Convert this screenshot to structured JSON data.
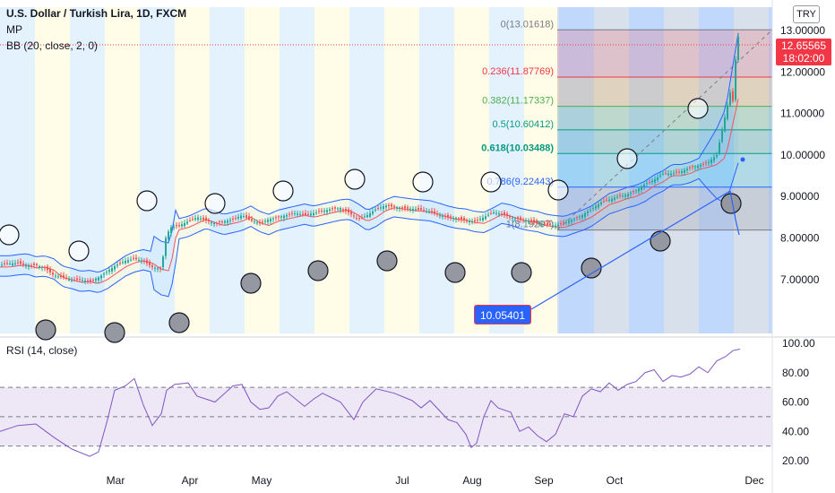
{
  "legend": {
    "title": "U.S. Dollar / Turkish Lira, 1D, FXCM",
    "mp": "MP",
    "bb": "BB (20, close, 2, 0)",
    "rsi": "RSI (14, close)"
  },
  "currency": "TRY",
  "last_price": {
    "value": "12.65565",
    "countdown": "18:02:00"
  },
  "callout": "10.05401",
  "colors": {
    "up": "#26a69a",
    "down": "#ef5350",
    "bb_band": "#2962ff",
    "bb_basis": "#f7525f",
    "rsi_line": "#7e57c2",
    "rsi_bg": "#ede7f6",
    "band_blue": "#e3f2fd",
    "band_yellow": "#fffde7"
  },
  "chart_data": [
    {
      "type": "candlestick",
      "title": "U.S. Dollar / Turkish Lira, 1D, FXCM",
      "xlabel": "",
      "ylabel": "",
      "x_tick_labels": [
        "Mar",
        "Apr",
        "May",
        "Jul",
        "Aug",
        "Sep",
        "Oct",
        "Dec"
      ],
      "y_tick_labels": [
        "13.00000",
        "12.00000",
        "11.00000",
        "10.00000",
        "9.00000",
        "8.00000",
        "7.00000"
      ],
      "ylim": [
        6.2,
        13.3
      ],
      "grid": false,
      "close_path": [
        [
          0,
          7.35
        ],
        [
          10,
          7.38
        ],
        [
          20,
          7.4
        ],
        [
          30,
          7.33
        ],
        [
          40,
          7.35
        ],
        [
          50,
          7.28
        ],
        [
          60,
          7.1
        ],
        [
          70,
          7.05
        ],
        [
          80,
          6.98
        ],
        [
          90,
          7.0
        ],
        [
          100,
          6.95
        ],
        [
          110,
          7.05
        ],
        [
          120,
          7.2
        ],
        [
          130,
          7.35
        ],
        [
          140,
          7.45
        ],
        [
          150,
          7.5
        ],
        [
          160,
          7.45
        ],
        [
          170,
          7.3
        ],
        [
          180,
          7.25
        ],
        [
          185,
          8.0
        ],
        [
          190,
          8.25
        ],
        [
          200,
          8.3
        ],
        [
          210,
          8.4
        ],
        [
          220,
          8.5
        ],
        [
          230,
          8.42
        ],
        [
          240,
          8.35
        ],
        [
          250,
          8.4
        ],
        [
          260,
          8.45
        ],
        [
          270,
          8.55
        ],
        [
          280,
          8.42
        ],
        [
          290,
          8.35
        ],
        [
          300,
          8.45
        ],
        [
          310,
          8.5
        ],
        [
          320,
          8.55
        ],
        [
          330,
          8.6
        ],
        [
          340,
          8.55
        ],
        [
          350,
          8.6
        ],
        [
          360,
          8.65
        ],
        [
          370,
          8.7
        ],
        [
          380,
          8.72
        ],
        [
          390,
          8.6
        ],
        [
          400,
          8.45
        ],
        [
          410,
          8.55
        ],
        [
          420,
          8.7
        ],
        [
          430,
          8.78
        ],
        [
          440,
          8.75
        ],
        [
          450,
          8.72
        ],
        [
          460,
          8.7
        ],
        [
          470,
          8.68
        ],
        [
          480,
          8.62
        ],
        [
          490,
          8.55
        ],
        [
          500,
          8.5
        ],
        [
          510,
          8.48
        ],
        [
          520,
          8.42
        ],
        [
          530,
          8.4
        ],
        [
          540,
          8.5
        ],
        [
          550,
          8.62
        ],
        [
          560,
          8.58
        ],
        [
          570,
          8.5
        ],
        [
          580,
          8.45
        ],
        [
          590,
          8.42
        ],
        [
          600,
          8.35
        ],
        [
          610,
          8.32
        ],
        [
          620,
          8.3
        ],
        [
          630,
          8.38
        ],
        [
          640,
          8.45
        ],
        [
          650,
          8.55
        ],
        [
          660,
          8.7
        ],
        [
          670,
          8.85
        ],
        [
          680,
          8.92
        ],
        [
          690,
          9.0
        ],
        [
          700,
          9.05
        ],
        [
          710,
          9.15
        ],
        [
          720,
          9.3
        ],
        [
          730,
          9.4
        ],
        [
          740,
          9.55
        ],
        [
          750,
          9.55
        ],
        [
          760,
          9.6
        ],
        [
          770,
          9.7
        ],
        [
          780,
          9.75
        ],
        [
          790,
          9.82
        ],
        [
          800,
          10.0
        ],
        [
          805,
          10.5
        ],
        [
          810,
          11.0
        ],
        [
          815,
          11.5
        ],
        [
          818,
          11.3
        ],
        [
          820,
          12.0
        ],
        [
          822,
          12.6
        ],
        [
          824,
          12.85
        ],
        [
          826,
          12.66
        ]
      ],
      "series": [
        {
          "name": "BB (20, close, 2, 0)"
        }
      ],
      "fibonacci": [
        {
          "label": "0(13.01618)",
          "value": 13.01618
        },
        {
          "label": "0.236(11.87769)",
          "value": 11.87769
        },
        {
          "label": "0.382(11.17337)",
          "value": 11.17337
        },
        {
          "label": "0.5(10.60412)",
          "value": 10.60412
        },
        {
          "label": "0.618(10.03488)",
          "value": 10.03488
        },
        {
          "label": "0.786(9.22443)",
          "value": 9.22443
        },
        {
          "label": "1(8.19207)",
          "value": 8.19207
        }
      ]
    },
    {
      "type": "line",
      "title": "RSI (14, close)",
      "y_tick_labels": [
        "100.00",
        "80.00",
        "60.00",
        "40.00",
        "20.00"
      ],
      "ylim": [
        15,
        103
      ],
      "bands": [
        30,
        50,
        70
      ],
      "series": [
        {
          "name": "RSI (14, close)",
          "points": [
            [
              0,
              40
            ],
            [
              20,
              44
            ],
            [
              40,
              45
            ],
            [
              60,
              36
            ],
            [
              80,
              28
            ],
            [
              100,
              23
            ],
            [
              110,
              26
            ],
            [
              120,
              48
            ],
            [
              128,
              68
            ],
            [
              140,
              71
            ],
            [
              150,
              76
            ],
            [
              160,
              58
            ],
            [
              170,
              44
            ],
            [
              180,
              52
            ],
            [
              186,
              68
            ],
            [
              195,
              72
            ],
            [
              210,
              73
            ],
            [
              220,
              64
            ],
            [
              240,
              60
            ],
            [
              260,
              71
            ],
            [
              270,
              72
            ],
            [
              280,
              60
            ],
            [
              290,
              55
            ],
            [
              300,
              56
            ],
            [
              310,
              64
            ],
            [
              320,
              67
            ],
            [
              340,
              57
            ],
            [
              350,
              62
            ],
            [
              360,
              66
            ],
            [
              380,
              60
            ],
            [
              395,
              48
            ],
            [
              405,
              60
            ],
            [
              420,
              69
            ],
            [
              440,
              66
            ],
            [
              460,
              61
            ],
            [
              470,
              56
            ],
            [
              480,
              61
            ],
            [
              500,
              48
            ],
            [
              510,
              46
            ],
            [
              520,
              38
            ],
            [
              526,
              29
            ],
            [
              532,
              32
            ],
            [
              540,
              50
            ],
            [
              548,
              61
            ],
            [
              556,
              56
            ],
            [
              570,
              53
            ],
            [
              580,
              40
            ],
            [
              590,
              43
            ],
            [
              600,
              37
            ],
            [
              610,
              33
            ],
            [
              620,
              38
            ],
            [
              630,
              52
            ],
            [
              640,
              50
            ],
            [
              650,
              64
            ],
            [
              660,
              69
            ],
            [
              670,
              67
            ],
            [
              680,
              73
            ],
            [
              690,
              68
            ],
            [
              700,
              72
            ],
            [
              710,
              74
            ],
            [
              720,
              80
            ],
            [
              730,
              82
            ],
            [
              740,
              74
            ],
            [
              750,
              78
            ],
            [
              760,
              77
            ],
            [
              770,
              79
            ],
            [
              780,
              84
            ],
            [
              790,
              80
            ],
            [
              800,
              88
            ],
            [
              810,
              91
            ],
            [
              818,
              95
            ],
            [
              826,
              96
            ]
          ]
        }
      ]
    }
  ]
}
